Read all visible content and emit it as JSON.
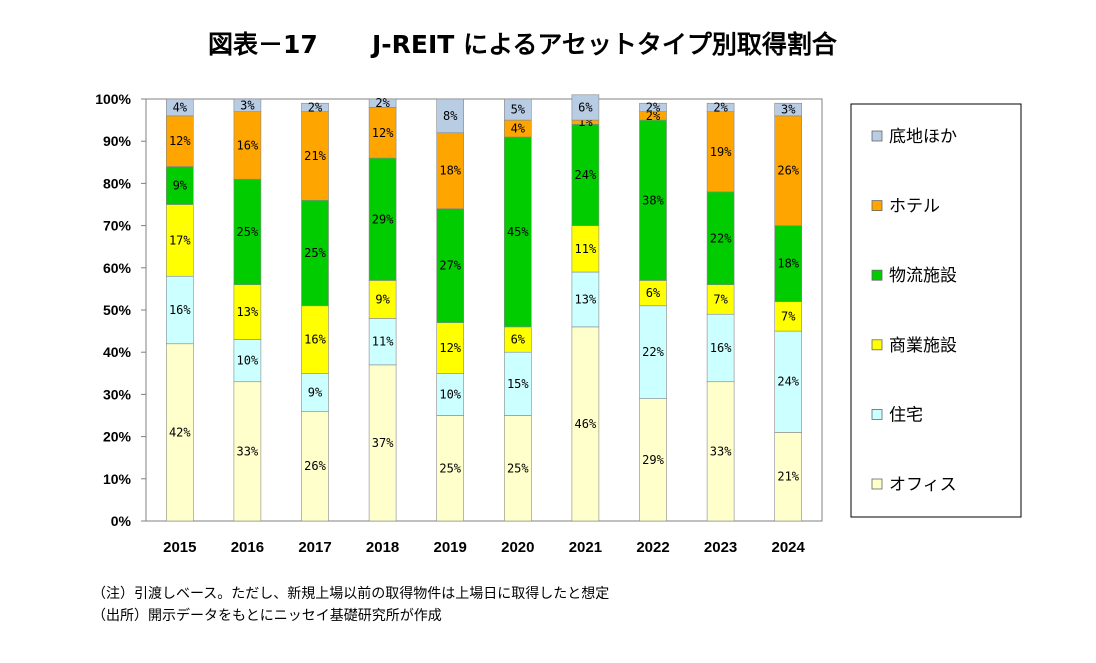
{
  "chart_data": {
    "type": "bar",
    "stacked": true,
    "title_prefix": "図表－17",
    "title_main": "J-REIT によるアセットタイプ別取得割合",
    "categories": [
      "2015",
      "2016",
      "2017",
      "2018",
      "2019",
      "2020",
      "2021",
      "2022",
      "2023",
      "2024"
    ],
    "ylim": [
      0,
      100
    ],
    "yticks": [
      "0%",
      "10%",
      "20%",
      "30%",
      "40%",
      "50%",
      "60%",
      "70%",
      "80%",
      "90%",
      "100%"
    ],
    "legend_position": "right",
    "series": [
      {
        "name": "オフィス",
        "color": "#FFFFCC",
        "values": [
          42,
          33,
          26,
          37,
          25,
          25,
          46,
          29,
          33,
          21
        ],
        "labels": [
          "42%",
          "33%",
          "26%",
          "37%",
          "25%",
          "25%",
          "46%",
          "29%",
          "33%",
          "21%"
        ]
      },
      {
        "name": "住宅",
        "color": "#CCFFFF",
        "values": [
          16,
          10,
          9,
          11,
          10,
          15,
          13,
          22,
          16,
          24
        ],
        "labels": [
          "16%",
          "10%",
          "9%",
          "11%",
          "10%",
          "15%",
          "13%",
          "22%",
          "16%",
          "24%"
        ]
      },
      {
        "name": "商業施設",
        "color": "#FFFF00",
        "values": [
          17,
          13,
          16,
          9,
          12,
          6,
          11,
          6,
          7,
          7
        ],
        "labels": [
          "17%",
          "13%",
          "16%",
          "9%",
          "12%",
          "6%",
          "11%",
          "6%",
          "7%",
          "7%"
        ]
      },
      {
        "name": "物流施設",
        "color": "#00CC00",
        "values": [
          9,
          25,
          25,
          29,
          27,
          45,
          24,
          38,
          22,
          18
        ],
        "labels": [
          "9%",
          "25%",
          "25%",
          "29%",
          "27%",
          "45%",
          "24%",
          "38%",
          "22%",
          "18%"
        ]
      },
      {
        "name": "ホテル",
        "color": "#FFA500",
        "values": [
          12,
          16,
          21,
          12,
          18,
          4,
          1,
          2,
          19,
          26
        ],
        "labels": [
          "12%",
          "16%",
          "21%",
          "12%",
          "18%",
          "4%",
          "1%",
          "2%",
          "19%",
          "26%"
        ]
      },
      {
        "name": "底地ほか",
        "color": "#B8CCE4",
        "values": [
          4,
          3,
          2,
          2,
          8,
          5,
          6,
          2,
          2,
          3
        ],
        "labels": [
          "4%",
          "3%",
          "2%",
          "2%",
          "8%",
          "5%",
          "6%",
          "2%",
          "2%",
          "3%"
        ]
      }
    ],
    "legend_order": [
      "底地ほか",
      "ホテル",
      "物流施設",
      "商業施設",
      "住宅",
      "オフィス"
    ]
  },
  "notes": {
    "note1": "（注）引渡しベース。ただし、新規上場以前の取得物件は上場日に取得したと想定",
    "note2": "（出所）開示データをもとにニッセイ基礎研究所が作成"
  }
}
